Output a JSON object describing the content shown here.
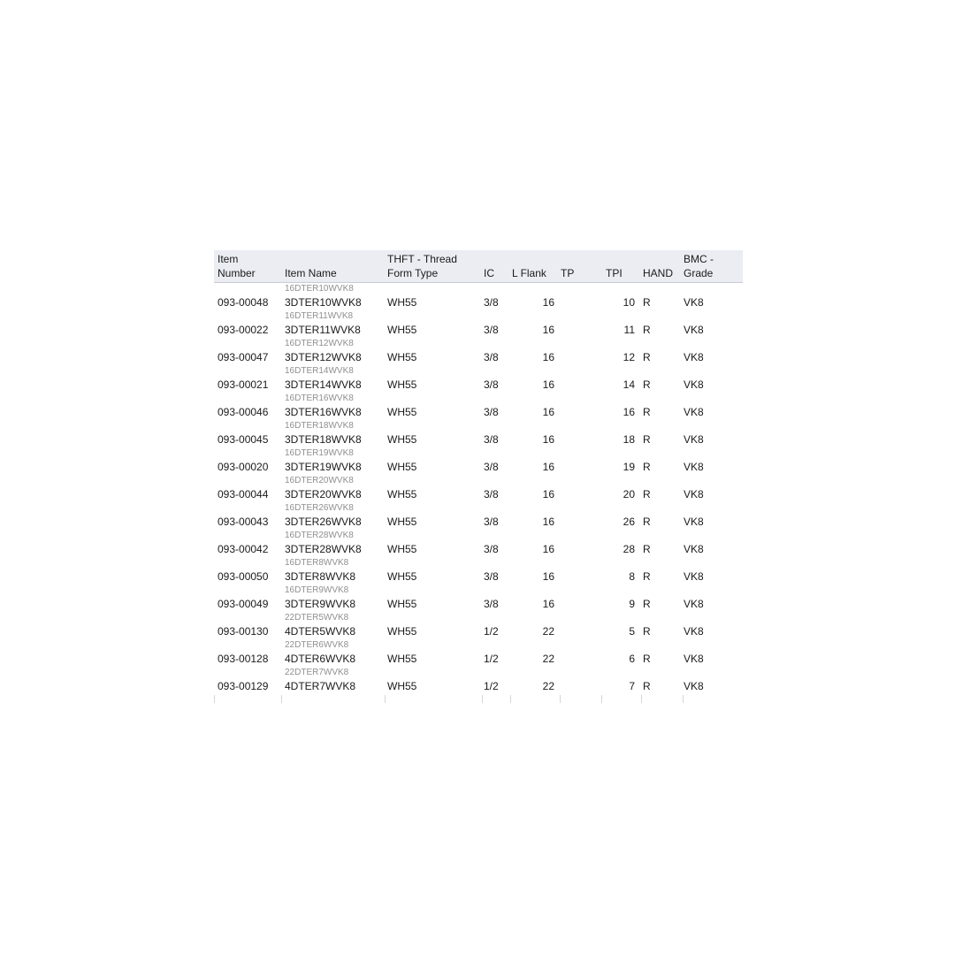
{
  "table": {
    "colors": {
      "page_bg": "#ffffff",
      "header_bg": "#ebedf3",
      "header_border": "#c9ccd4",
      "text": "#1a1a1a",
      "sublabel": "#8f8f8f",
      "tick": "#d6d6d6"
    },
    "columns": [
      {
        "id": "item_number",
        "line1": "Item",
        "line2": "Number"
      },
      {
        "id": "item_name",
        "line1": "",
        "line2": "Item Name"
      },
      {
        "id": "thft",
        "line1": "THFT - Thread",
        "line2": "Form Type"
      },
      {
        "id": "ic",
        "line1": "",
        "line2": "IC"
      },
      {
        "id": "l_flank",
        "line1": "",
        "line2": "L Flank"
      },
      {
        "id": "tp",
        "line1": "",
        "line2": "TP"
      },
      {
        "id": "tpi",
        "line1": "",
        "line2": "TPI"
      },
      {
        "id": "hand",
        "line1": "",
        "line2": "HAND"
      },
      {
        "id": "grade",
        "line1": "BMC -",
        "line2": "Grade"
      }
    ],
    "rows": [
      {
        "sublabel": "16DTER10WVK8",
        "item_number": "093-00048",
        "item_name": "3DTER10WVK8",
        "thft": "WH55",
        "ic": "3/8",
        "l_flank": "16",
        "tp": "",
        "tpi": "10",
        "hand": "R",
        "grade": "VK8"
      },
      {
        "sublabel": "16DTER11WVK8",
        "item_number": "093-00022",
        "item_name": "3DTER11WVK8",
        "thft": "WH55",
        "ic": "3/8",
        "l_flank": "16",
        "tp": "",
        "tpi": "11",
        "hand": "R",
        "grade": "VK8"
      },
      {
        "sublabel": "16DTER12WVK8",
        "item_number": "093-00047",
        "item_name": "3DTER12WVK8",
        "thft": "WH55",
        "ic": "3/8",
        "l_flank": "16",
        "tp": "",
        "tpi": "12",
        "hand": "R",
        "grade": "VK8"
      },
      {
        "sublabel": "16DTER14WVK8",
        "item_number": "093-00021",
        "item_name": "3DTER14WVK8",
        "thft": "WH55",
        "ic": "3/8",
        "l_flank": "16",
        "tp": "",
        "tpi": "14",
        "hand": "R",
        "grade": "VK8"
      },
      {
        "sublabel": "16DTER16WVK8",
        "item_number": "093-00046",
        "item_name": "3DTER16WVK8",
        "thft": "WH55",
        "ic": "3/8",
        "l_flank": "16",
        "tp": "",
        "tpi": "16",
        "hand": "R",
        "grade": "VK8"
      },
      {
        "sublabel": "16DTER18WVK8",
        "item_number": "093-00045",
        "item_name": "3DTER18WVK8",
        "thft": "WH55",
        "ic": "3/8",
        "l_flank": "16",
        "tp": "",
        "tpi": "18",
        "hand": "R",
        "grade": "VK8"
      },
      {
        "sublabel": "16DTER19WVK8",
        "item_number": "093-00020",
        "item_name": "3DTER19WVK8",
        "thft": "WH55",
        "ic": "3/8",
        "l_flank": "16",
        "tp": "",
        "tpi": "19",
        "hand": "R",
        "grade": "VK8"
      },
      {
        "sublabel": "16DTER20WVK8",
        "item_number": "093-00044",
        "item_name": "3DTER20WVK8",
        "thft": "WH55",
        "ic": "3/8",
        "l_flank": "16",
        "tp": "",
        "tpi": "20",
        "hand": "R",
        "grade": "VK8"
      },
      {
        "sublabel": "16DTER26WVK8",
        "item_number": "093-00043",
        "item_name": "3DTER26WVK8",
        "thft": "WH55",
        "ic": "3/8",
        "l_flank": "16",
        "tp": "",
        "tpi": "26",
        "hand": "R",
        "grade": "VK8"
      },
      {
        "sublabel": "16DTER28WVK8",
        "item_number": "093-00042",
        "item_name": "3DTER28WVK8",
        "thft": "WH55",
        "ic": "3/8",
        "l_flank": "16",
        "tp": "",
        "tpi": "28",
        "hand": "R",
        "grade": "VK8"
      },
      {
        "sublabel": "16DTER8WVK8",
        "item_number": "093-00050",
        "item_name": "3DTER8WVK8",
        "thft": "WH55",
        "ic": "3/8",
        "l_flank": "16",
        "tp": "",
        "tpi": "8",
        "hand": "R",
        "grade": "VK8"
      },
      {
        "sublabel": "16DTER9WVK8",
        "item_number": "093-00049",
        "item_name": "3DTER9WVK8",
        "thft": "WH55",
        "ic": "3/8",
        "l_flank": "16",
        "tp": "",
        "tpi": "9",
        "hand": "R",
        "grade": "VK8"
      },
      {
        "sublabel": "22DTER5WVK8",
        "item_number": "093-00130",
        "item_name": "4DTER5WVK8",
        "thft": "WH55",
        "ic": "1/2",
        "l_flank": "22",
        "tp": "",
        "tpi": "5",
        "hand": "R",
        "grade": "VK8"
      },
      {
        "sublabel": "22DTER6WVK8",
        "item_number": "093-00128",
        "item_name": "4DTER6WVK8",
        "thft": "WH55",
        "ic": "1/2",
        "l_flank": "22",
        "tp": "",
        "tpi": "6",
        "hand": "R",
        "grade": "VK8"
      },
      {
        "sublabel": "22DTER7WVK8",
        "item_number": "093-00129",
        "item_name": "4DTER7WVK8",
        "thft": "WH55",
        "ic": "1/2",
        "l_flank": "22",
        "tp": "",
        "tpi": "7",
        "hand": "R",
        "grade": "VK8"
      }
    ]
  }
}
